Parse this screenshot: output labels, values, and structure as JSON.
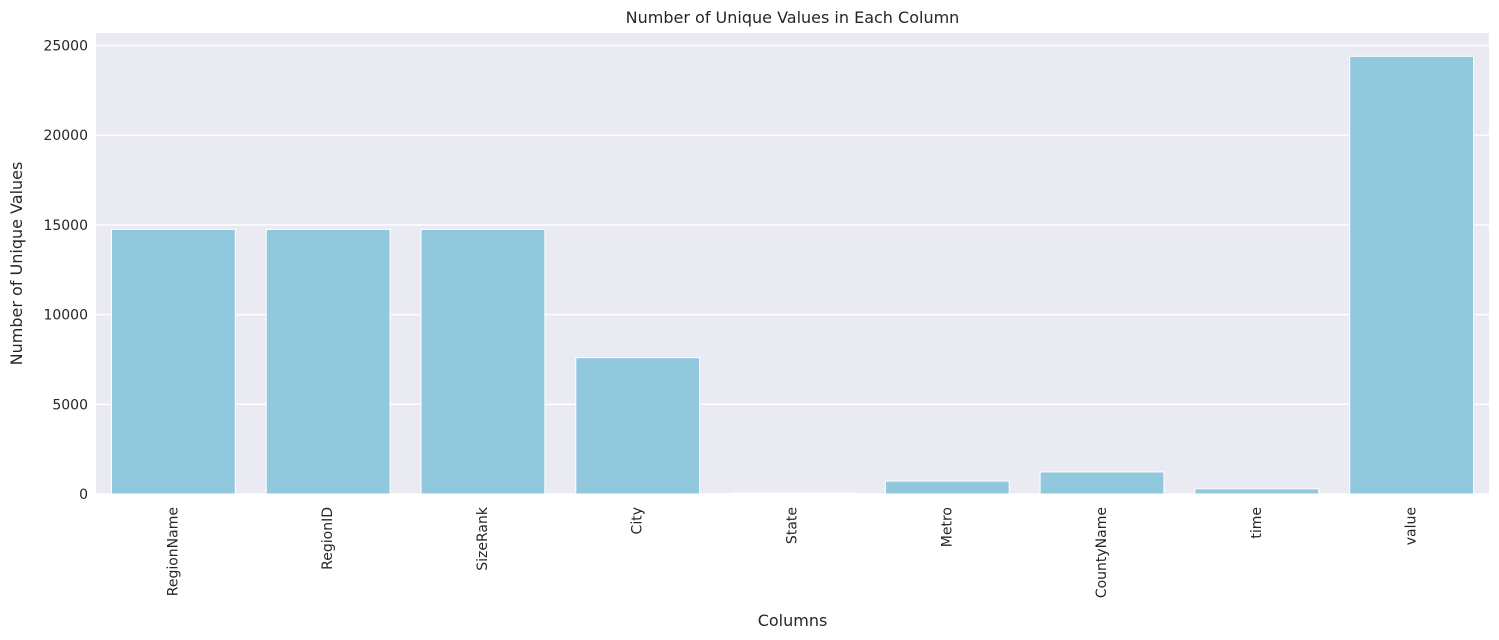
{
  "chart_data": {
    "type": "bar",
    "title": "Number of Unique Values in Each Column",
    "xlabel": "Columns",
    "ylabel": "Number of Unique Values",
    "categories": [
      "RegionName",
      "RegionID",
      "SizeRank",
      "City",
      "State",
      "Metro",
      "CountyName",
      "time",
      "value"
    ],
    "values": [
      14750,
      14750,
      14750,
      7600,
      51,
      720,
      1230,
      290,
      24400
    ],
    "ylim": [
      0,
      25700
    ],
    "yticks": [
      0,
      5000,
      10000,
      15000,
      20000,
      25000
    ],
    "grid": true,
    "legend": "none",
    "colors": {
      "bar": "#92c8dd",
      "plot_background": "#eaeaf2",
      "grid": "#ffffff",
      "text": "#262626"
    }
  }
}
